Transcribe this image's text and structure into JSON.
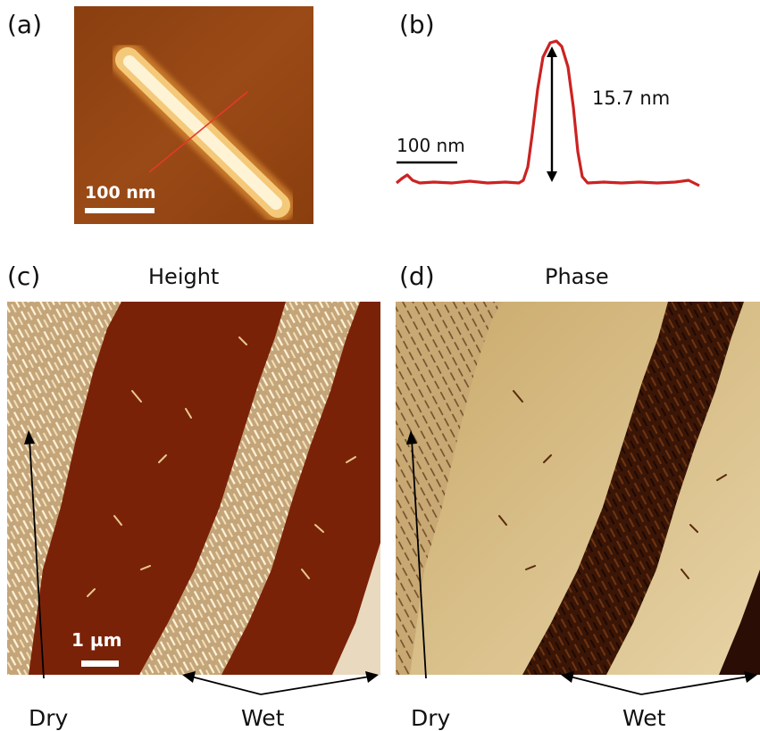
{
  "panels": {
    "a": {
      "label": "(a)",
      "scale_label": "100 nm"
    },
    "b": {
      "label": "(b)",
      "height_label": "15.7 nm",
      "scale_label": "100 nm",
      "line_color": "#cc2222"
    },
    "c": {
      "label": "(c)",
      "title": "Height",
      "scale_label": "1 µm"
    },
    "d": {
      "label": "(d)",
      "title": "Phase"
    }
  },
  "annotations": {
    "dry_left": "Dry",
    "wet_left": "Wet",
    "dry_right": "Dry",
    "wet_right": "Wet"
  }
}
